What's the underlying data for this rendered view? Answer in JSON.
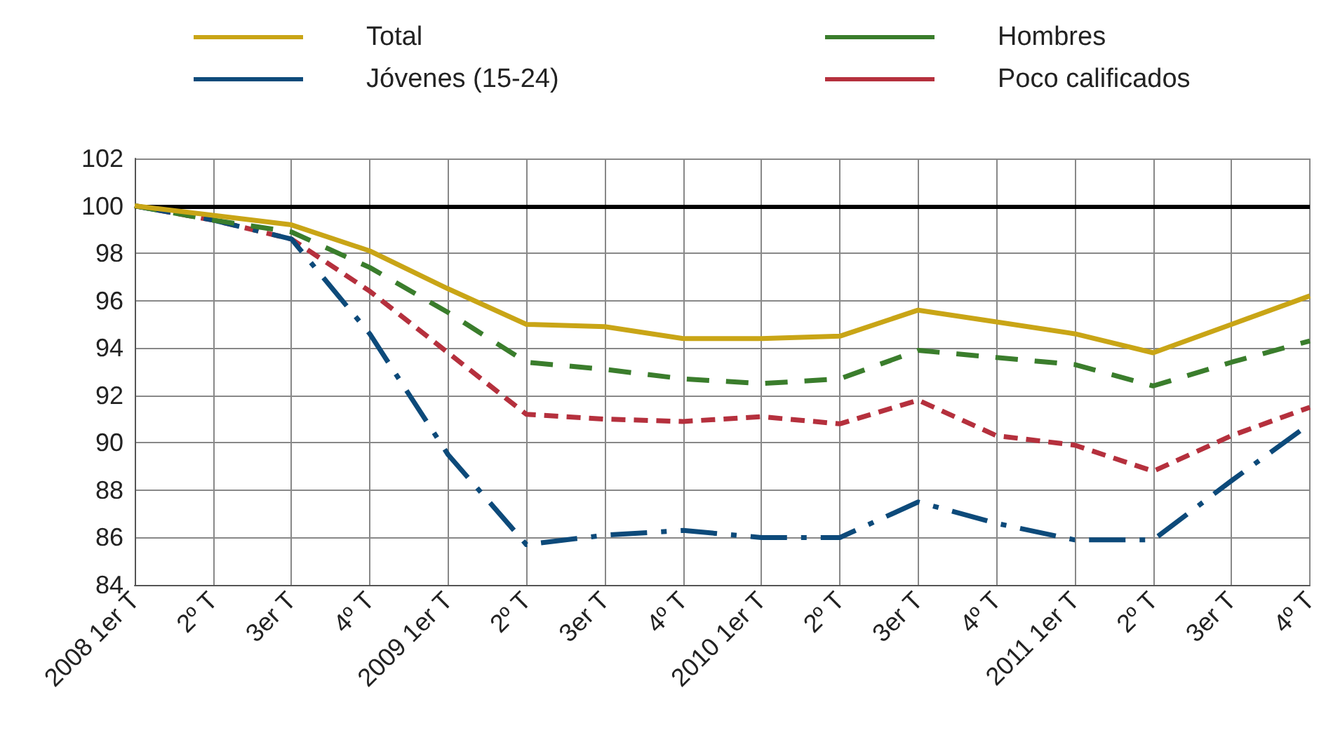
{
  "chart_data": {
    "type": "line",
    "categories": [
      "2008 1er T",
      "2º T",
      "3er T",
      "4º T",
      "2009 1er T",
      "2º T",
      "3er T",
      "4º T",
      "2010 1er T",
      "2º T",
      "3er T",
      "4º T",
      "2011 1er T",
      "2º T",
      "3er T",
      "4º T"
    ],
    "series": [
      {
        "name": "Total",
        "color": "#c9a516",
        "line_style": "solid",
        "values": [
          100,
          99.6,
          99.2,
          98.1,
          96.5,
          95.0,
          94.9,
          94.4,
          94.4,
          94.5,
          95.6,
          95.1,
          94.6,
          93.8,
          95.0,
          96.2
        ]
      },
      {
        "name": "Hombres",
        "color": "#3a7d2c",
        "line_style": "dashed",
        "values": [
          100,
          99.4,
          98.9,
          97.4,
          95.5,
          93.4,
          93.1,
          92.7,
          92.5,
          92.7,
          93.9,
          93.6,
          93.3,
          92.4,
          93.4,
          94.3
        ]
      },
      {
        "name": "Jóvenes (15-24)",
        "color": "#0d4a7a",
        "line_style": "dashed",
        "values": [
          100,
          99.4,
          98.6,
          94.6,
          89.5,
          85.7,
          86.1,
          86.3,
          86.0,
          86.0,
          87.5,
          86.6,
          85.9,
          85.9,
          88.4,
          90.8
        ]
      },
      {
        "name": "Poco calificados",
        "color": "#b5303d",
        "line_style": "dashed",
        "values": [
          100,
          99.4,
          98.6,
          96.4,
          93.8,
          91.2,
          91.0,
          90.9,
          91.1,
          90.8,
          91.8,
          90.3,
          89.9,
          88.8,
          90.3,
          91.5
        ]
      }
    ],
    "ylim": [
      84,
      102
    ],
    "yticks": [
      84,
      86,
      88,
      90,
      92,
      94,
      96,
      98,
      100,
      102
    ],
    "grid": true,
    "legend": "top",
    "marker": "none",
    "ref_lines": [
      {
        "axis": "y",
        "value": 100,
        "color": "#000000"
      }
    ]
  }
}
